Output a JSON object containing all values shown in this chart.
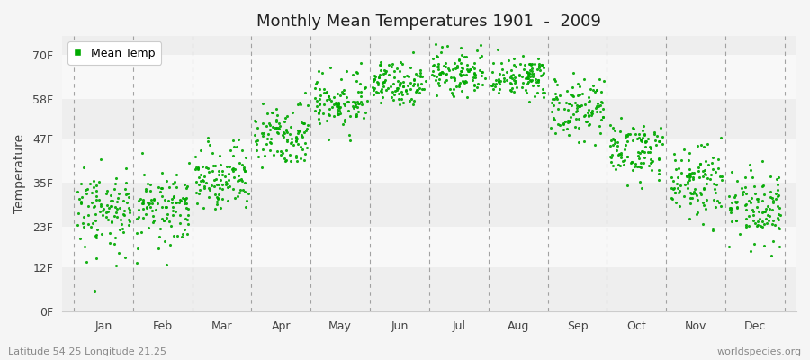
{
  "title": "Monthly Mean Temperatures 1901  -  2009",
  "ylabel": "Temperature",
  "bottom_left_text": "Latitude 54.25 Longitude 21.25",
  "bottom_right_text": "worldspecies.org",
  "legend_label": "Mean Temp",
  "dot_color": "#00aa00",
  "background_color": "#f5f5f5",
  "band_colors": [
    "#eeeeee",
    "#f8f8f8"
  ],
  "ytick_labels": [
    "0F",
    "12F",
    "23F",
    "35F",
    "47F",
    "58F",
    "70F"
  ],
  "ytick_values": [
    0,
    12,
    23,
    35,
    47,
    58,
    70
  ],
  "months": [
    "Jan",
    "Feb",
    "Mar",
    "Apr",
    "May",
    "Jun",
    "Jul",
    "Aug",
    "Sep",
    "Oct",
    "Nov",
    "Dec"
  ],
  "mean_temps_F": [
    27,
    28,
    37,
    48,
    57,
    62,
    65,
    64,
    55,
    44,
    35,
    28
  ],
  "std_devs_F": [
    6,
    6,
    5,
    4,
    4,
    3,
    3,
    3,
    4,
    4,
    5,
    5
  ],
  "n_years": 109,
  "figsize": [
    9.0,
    4.0
  ],
  "dpi": 100
}
